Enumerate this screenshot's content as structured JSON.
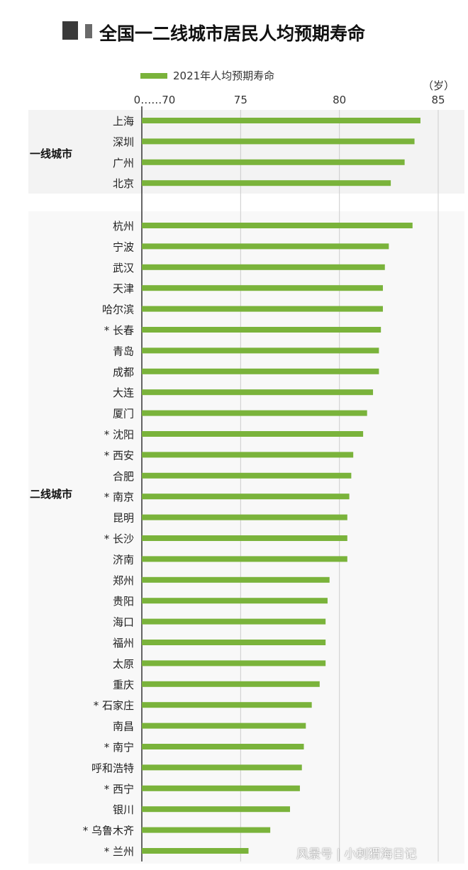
{
  "title": "全国一二线城市居民人均预期寿命",
  "legend": "2021年人均预期寿命",
  "unit": "（岁）",
  "footer_watermark": "风景号 | 小刺猬海日记",
  "colors": {
    "bar": "#7ab33b",
    "tier1_bg": "#f3f3f3",
    "grid": "#cccccc"
  },
  "chart_data": {
    "type": "bar",
    "orientation": "horizontal",
    "xlim": [
      70,
      85
    ],
    "x_ticks": [
      "0……70",
      "75",
      "80",
      "85"
    ],
    "tick_values": [
      70,
      75,
      80,
      85
    ],
    "groups": [
      {
        "name": "一线城市",
        "categories": [
          "上海",
          "深圳",
          "广州",
          "北京"
        ],
        "values": [
          84.1,
          83.8,
          83.3,
          82.6
        ]
      },
      {
        "name": "二线城市",
        "categories": [
          "杭州",
          "宁波",
          "武汉",
          "天津",
          "哈尔滨",
          "* 长春",
          "青岛",
          "成都",
          "大连",
          "厦门",
          "* 沈阳",
          "* 西安",
          "合肥",
          "* 南京",
          "昆明",
          "* 长沙",
          "济南",
          "郑州",
          "贵阳",
          "海口",
          "福州",
          "太原",
          "重庆",
          "* 石家庄",
          "南昌",
          "* 南宁",
          "呼和浩特",
          "* 西宁",
          "银川",
          "* 乌鲁木齐",
          "* 兰州"
        ],
        "values": [
          83.7,
          82.5,
          82.3,
          82.2,
          82.2,
          82.1,
          82.0,
          82.0,
          81.7,
          81.4,
          81.2,
          80.7,
          80.6,
          80.5,
          80.4,
          80.4,
          80.4,
          79.5,
          79.4,
          79.3,
          79.3,
          79.3,
          79.0,
          78.6,
          78.3,
          78.2,
          78.1,
          78.0,
          77.5,
          76.5,
          75.4
        ]
      }
    ]
  }
}
